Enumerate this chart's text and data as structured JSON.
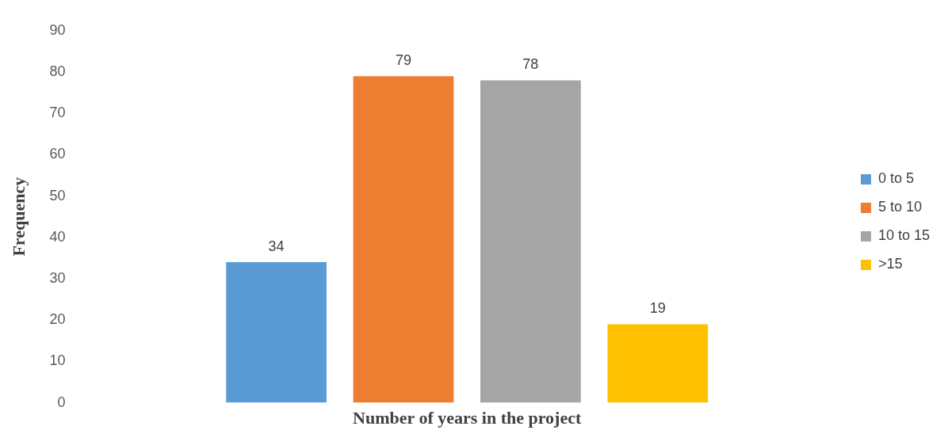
{
  "chart_data": {
    "type": "bar",
    "xlabel": "Number of years in the project",
    "ylabel": "Frequency",
    "categories": [
      null
    ],
    "series": [
      {
        "name": "0 to 5",
        "color": "#5b9bd5",
        "values": [
          34
        ]
      },
      {
        "name": "5 to 10",
        "color": "#ed7d31",
        "values": [
          79
        ]
      },
      {
        "name": "10 to 15",
        "color": "#a5a5a5",
        "values": [
          78
        ]
      },
      {
        "name": ">15",
        "color": "#ffc000",
        "values": [
          19
        ]
      }
    ],
    "ylim": [
      0,
      90
    ],
    "yticks": [
      0,
      10,
      20,
      30,
      40,
      50,
      60,
      70,
      80,
      90
    ],
    "grid": false,
    "legend": "right",
    "data_labels": true,
    "tick_labels": "y"
  }
}
